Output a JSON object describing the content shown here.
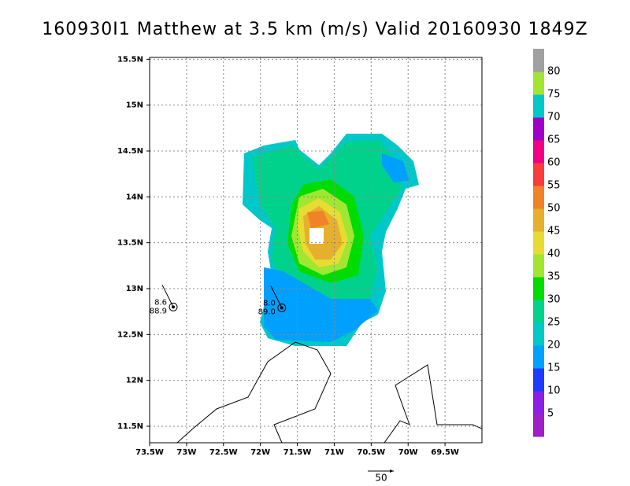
{
  "title": "160930I1 Matthew at 3.5 km (m/s) Valid 20160930 1849Z",
  "map": {
    "xlim": [
      -73.5,
      -69.0
    ],
    "ylim": [
      11.32,
      15.52
    ],
    "grid": true,
    "xticks": [
      {
        "value": -73.5,
        "label": "73.5W"
      },
      {
        "value": -73,
        "label": "73W"
      },
      {
        "value": -72.5,
        "label": "72.5W"
      },
      {
        "value": -72,
        "label": "72W"
      },
      {
        "value": -71.5,
        "label": "71.5W"
      },
      {
        "value": -71,
        "label": "71W"
      },
      {
        "value": -70.5,
        "label": "70.5W"
      },
      {
        "value": -70,
        "label": "70W"
      },
      {
        "value": -69.5,
        "label": "69.5W"
      }
    ],
    "yticks": [
      {
        "value": 11.5,
        "label": "11.5N"
      },
      {
        "value": 12,
        "label": "12N"
      },
      {
        "value": 12.5,
        "label": "12.5N"
      },
      {
        "value": 13,
        "label": "13N"
      },
      {
        "value": 13.5,
        "label": "13.5N"
      },
      {
        "value": 14,
        "label": "14N"
      },
      {
        "value": 14.5,
        "label": "14.5N"
      },
      {
        "value": 15,
        "label": "15N"
      },
      {
        "value": 15.5,
        "label": "15.5N"
      }
    ]
  },
  "colorbar": {
    "levels": [
      5,
      10,
      15,
      20,
      25,
      30,
      35,
      40,
      45,
      50,
      55,
      60,
      65,
      70,
      75,
      80
    ],
    "colors": [
      "#a01ec8",
      "#8c1ee6",
      "#1e3cff",
      "#00a0ff",
      "#00c8c8",
      "#00d28c",
      "#00dc00",
      "#a0e632",
      "#e6dc32",
      "#e6af2d",
      "#f08228",
      "#fa3c3c",
      "#f00082",
      "#a000c8",
      "#00c8c8",
      "#a0e632",
      "#a0a0a0"
    ]
  },
  "stations": [
    {
      "lon": -73.18,
      "lat": 12.8,
      "labels": [
        "8.6",
        "88.9"
      ]
    },
    {
      "lon": -71.71,
      "lat": 12.79,
      "labels": [
        "8.0",
        "89.0"
      ]
    }
  ],
  "reference_vector": {
    "label": "50"
  }
}
